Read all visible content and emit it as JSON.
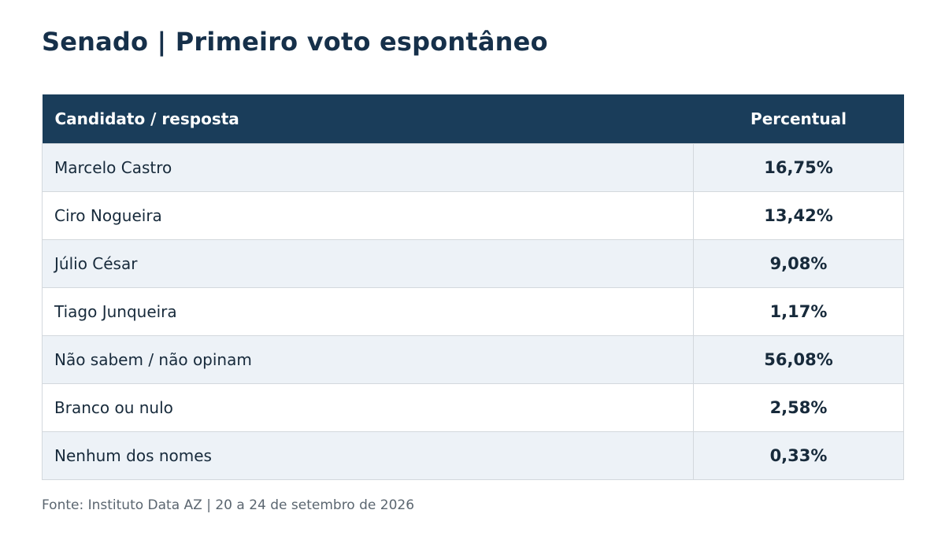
{
  "title": "Senado | Primeiro voto espontâneo",
  "colors": {
    "title": "#16304a",
    "header_bg": "#1a3d5a",
    "header_text": "#ffffff",
    "row_alt_bg": "#edf2f7",
    "row_bg": "#ffffff",
    "cell_text": "#172a3b",
    "source_text": "#5b6670",
    "border": "#d3d8dd"
  },
  "chart_data": {
    "type": "table",
    "title": "Senado | Primeiro voto espontâneo",
    "columns": [
      "Candidato / resposta",
      "Percentual"
    ],
    "rows": [
      {
        "name": "Marcelo Castro",
        "value": 16.75,
        "label": "16,75%"
      },
      {
        "name": "Ciro Nogueira",
        "value": 13.42,
        "label": "13,42%"
      },
      {
        "name": "Júlio César",
        "value": 9.08,
        "label": "9,08%"
      },
      {
        "name": "Tiago Junqueira",
        "value": 1.17,
        "label": "1,17%"
      },
      {
        "name": "Não sabem / não opinam",
        "value": 56.08,
        "label": "56,08%"
      },
      {
        "name": "Branco ou nulo",
        "value": 2.58,
        "label": "2,58%"
      },
      {
        "name": "Nenhum dos nomes",
        "value": 0.33,
        "label": "0,33%"
      }
    ],
    "source": "Fonte: Instituto Data AZ | 20 a 24 de setembro de 2026"
  }
}
